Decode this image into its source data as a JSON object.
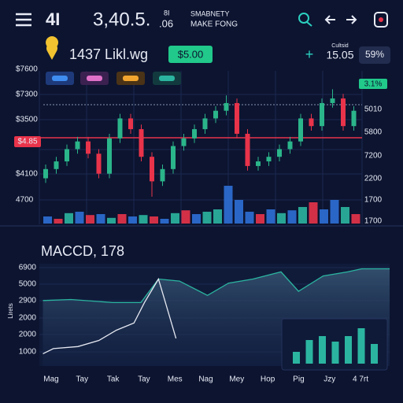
{
  "header": {
    "ticker": "4I",
    "price": "3,40.5.",
    "price_sup": "8I",
    "price_sub": ".06",
    "name_line1": "SMABNETY",
    "name_line2": "MAKE FONG"
  },
  "summary": {
    "label": "1437 Likl.wg",
    "badge": "$5.00",
    "plus": "+",
    "change_caption": "Cultsid",
    "change": "15.05",
    "percent": "59%"
  },
  "price_chart": {
    "left_labels": [
      "$7600",
      "$7300",
      "$3500",
      "$4.85",
      "$4100",
      "4700"
    ],
    "right_labels": [
      "3.1%",
      "5010",
      "5800",
      "7200",
      "2200",
      "1700",
      "1700"
    ],
    "ylim": [
      0,
      100
    ],
    "candles": [
      {
        "o": 30,
        "h": 39,
        "l": 27,
        "c": 36
      },
      {
        "o": 36,
        "h": 44,
        "l": 33,
        "c": 41
      },
      {
        "o": 41,
        "h": 52,
        "l": 38,
        "c": 49
      },
      {
        "o": 49,
        "h": 57,
        "l": 46,
        "c": 54
      },
      {
        "o": 54,
        "h": 57,
        "l": 43,
        "c": 46
      },
      {
        "o": 46,
        "h": 49,
        "l": 30,
        "c": 33
      },
      {
        "o": 33,
        "h": 59,
        "l": 30,
        "c": 56
      },
      {
        "o": 56,
        "h": 72,
        "l": 53,
        "c": 69
      },
      {
        "o": 69,
        "h": 72,
        "l": 59,
        "c": 62
      },
      {
        "o": 62,
        "h": 65,
        "l": 41,
        "c": 44
      },
      {
        "o": 44,
        "h": 47,
        "l": 18,
        "c": 28
      },
      {
        "o": 28,
        "h": 39,
        "l": 25,
        "c": 36
      },
      {
        "o": 36,
        "h": 54,
        "l": 33,
        "c": 51
      },
      {
        "o": 51,
        "h": 59,
        "l": 48,
        "c": 56
      },
      {
        "o": 56,
        "h": 65,
        "l": 53,
        "c": 62
      },
      {
        "o": 62,
        "h": 72,
        "l": 59,
        "c": 69
      },
      {
        "o": 69,
        "h": 77,
        "l": 66,
        "c": 74
      },
      {
        "o": 74,
        "h": 84,
        "l": 71,
        "c": 79
      },
      {
        "o": 79,
        "h": 82,
        "l": 56,
        "c": 59
      },
      {
        "o": 59,
        "h": 62,
        "l": 35,
        "c": 38
      },
      {
        "o": 38,
        "h": 44,
        "l": 35,
        "c": 41
      },
      {
        "o": 41,
        "h": 47,
        "l": 38,
        "c": 44
      },
      {
        "o": 44,
        "h": 52,
        "l": 41,
        "c": 49
      },
      {
        "o": 49,
        "h": 57,
        "l": 46,
        "c": 54
      },
      {
        "o": 54,
        "h": 72,
        "l": 51,
        "c": 69
      },
      {
        "o": 69,
        "h": 72,
        "l": 61,
        "c": 64
      },
      {
        "o": 64,
        "h": 82,
        "l": 61,
        "c": 79
      },
      {
        "o": 79,
        "h": 88,
        "l": 76,
        "c": 82
      },
      {
        "o": 82,
        "h": 85,
        "l": 61,
        "c": 64
      },
      {
        "o": 64,
        "h": 77,
        "l": 61,
        "c": 74
      }
    ],
    "volume": {
      "ylim": [
        0,
        100
      ],
      "values": [
        15,
        10,
        22,
        25,
        18,
        20,
        12,
        20,
        15,
        18,
        15,
        10,
        22,
        28,
        20,
        25,
        30,
        80,
        50,
        25,
        20,
        30,
        22,
        28,
        35,
        45,
        30,
        50,
        35,
        20
      ],
      "colors": [
        "#2d6fd6",
        "#e8334a",
        "#2bb5a0",
        "#2d6fd6",
        "#e8334a",
        "#2d6fd6",
        "#2bb5a0",
        "#e8334a",
        "#2d6fd6",
        "#2bb5a0",
        "#e8334a",
        "#2d6fd6",
        "#2bb5a0",
        "#e8334a",
        "#2d6fd6",
        "#2bb5a0",
        "#2bb5a0",
        "#2d6fd6",
        "#2d6fd6",
        "#2d6fd6",
        "#e8334a",
        "#2d6fd6",
        "#2bb5a0",
        "#2d6fd6",
        "#2bb5a0",
        "#e8334a",
        "#2d6fd6",
        "#2d6fd6",
        "#2bb5a0",
        "#e8334a"
      ]
    }
  },
  "macd": {
    "title": "MACCD, 178",
    "axis_label": "Lirets",
    "y_labels": [
      "6900",
      "5000",
      "2900",
      "2000",
      "2000",
      "1000"
    ],
    "categories": [
      "Mag",
      "Tay",
      "Tak",
      "Tay",
      "Mes",
      "Nag",
      "Mey",
      "Hop",
      "Pig",
      "Jzy",
      "4 7rt"
    ],
    "xlim": [
      0,
      100
    ],
    "ylim": [
      0,
      100
    ],
    "series": [
      {
        "x": [
          1,
          9,
          21,
          29,
          34,
          40,
          48,
          54,
          61,
          69,
          74,
          81,
          88,
          92,
          100
        ],
        "values": [
          64,
          65,
          62,
          62,
          85,
          83,
          69,
          81,
          85,
          92,
          73,
          88,
          92,
          95,
          95
        ],
        "color": "#2bb5a0"
      },
      {
        "x": [
          1,
          4,
          11,
          17,
          22,
          27,
          30,
          34,
          36,
          39
        ],
        "values": [
          12,
          17,
          19,
          25,
          35,
          42,
          62,
          85,
          62,
          27
        ],
        "color": "#e6e9f2"
      }
    ],
    "histogram": {
      "ylim": [
        0,
        50
      ],
      "values": [
        15,
        30,
        35,
        28,
        35,
        45,
        25
      ],
      "color": "#2bb5a0"
    }
  }
}
